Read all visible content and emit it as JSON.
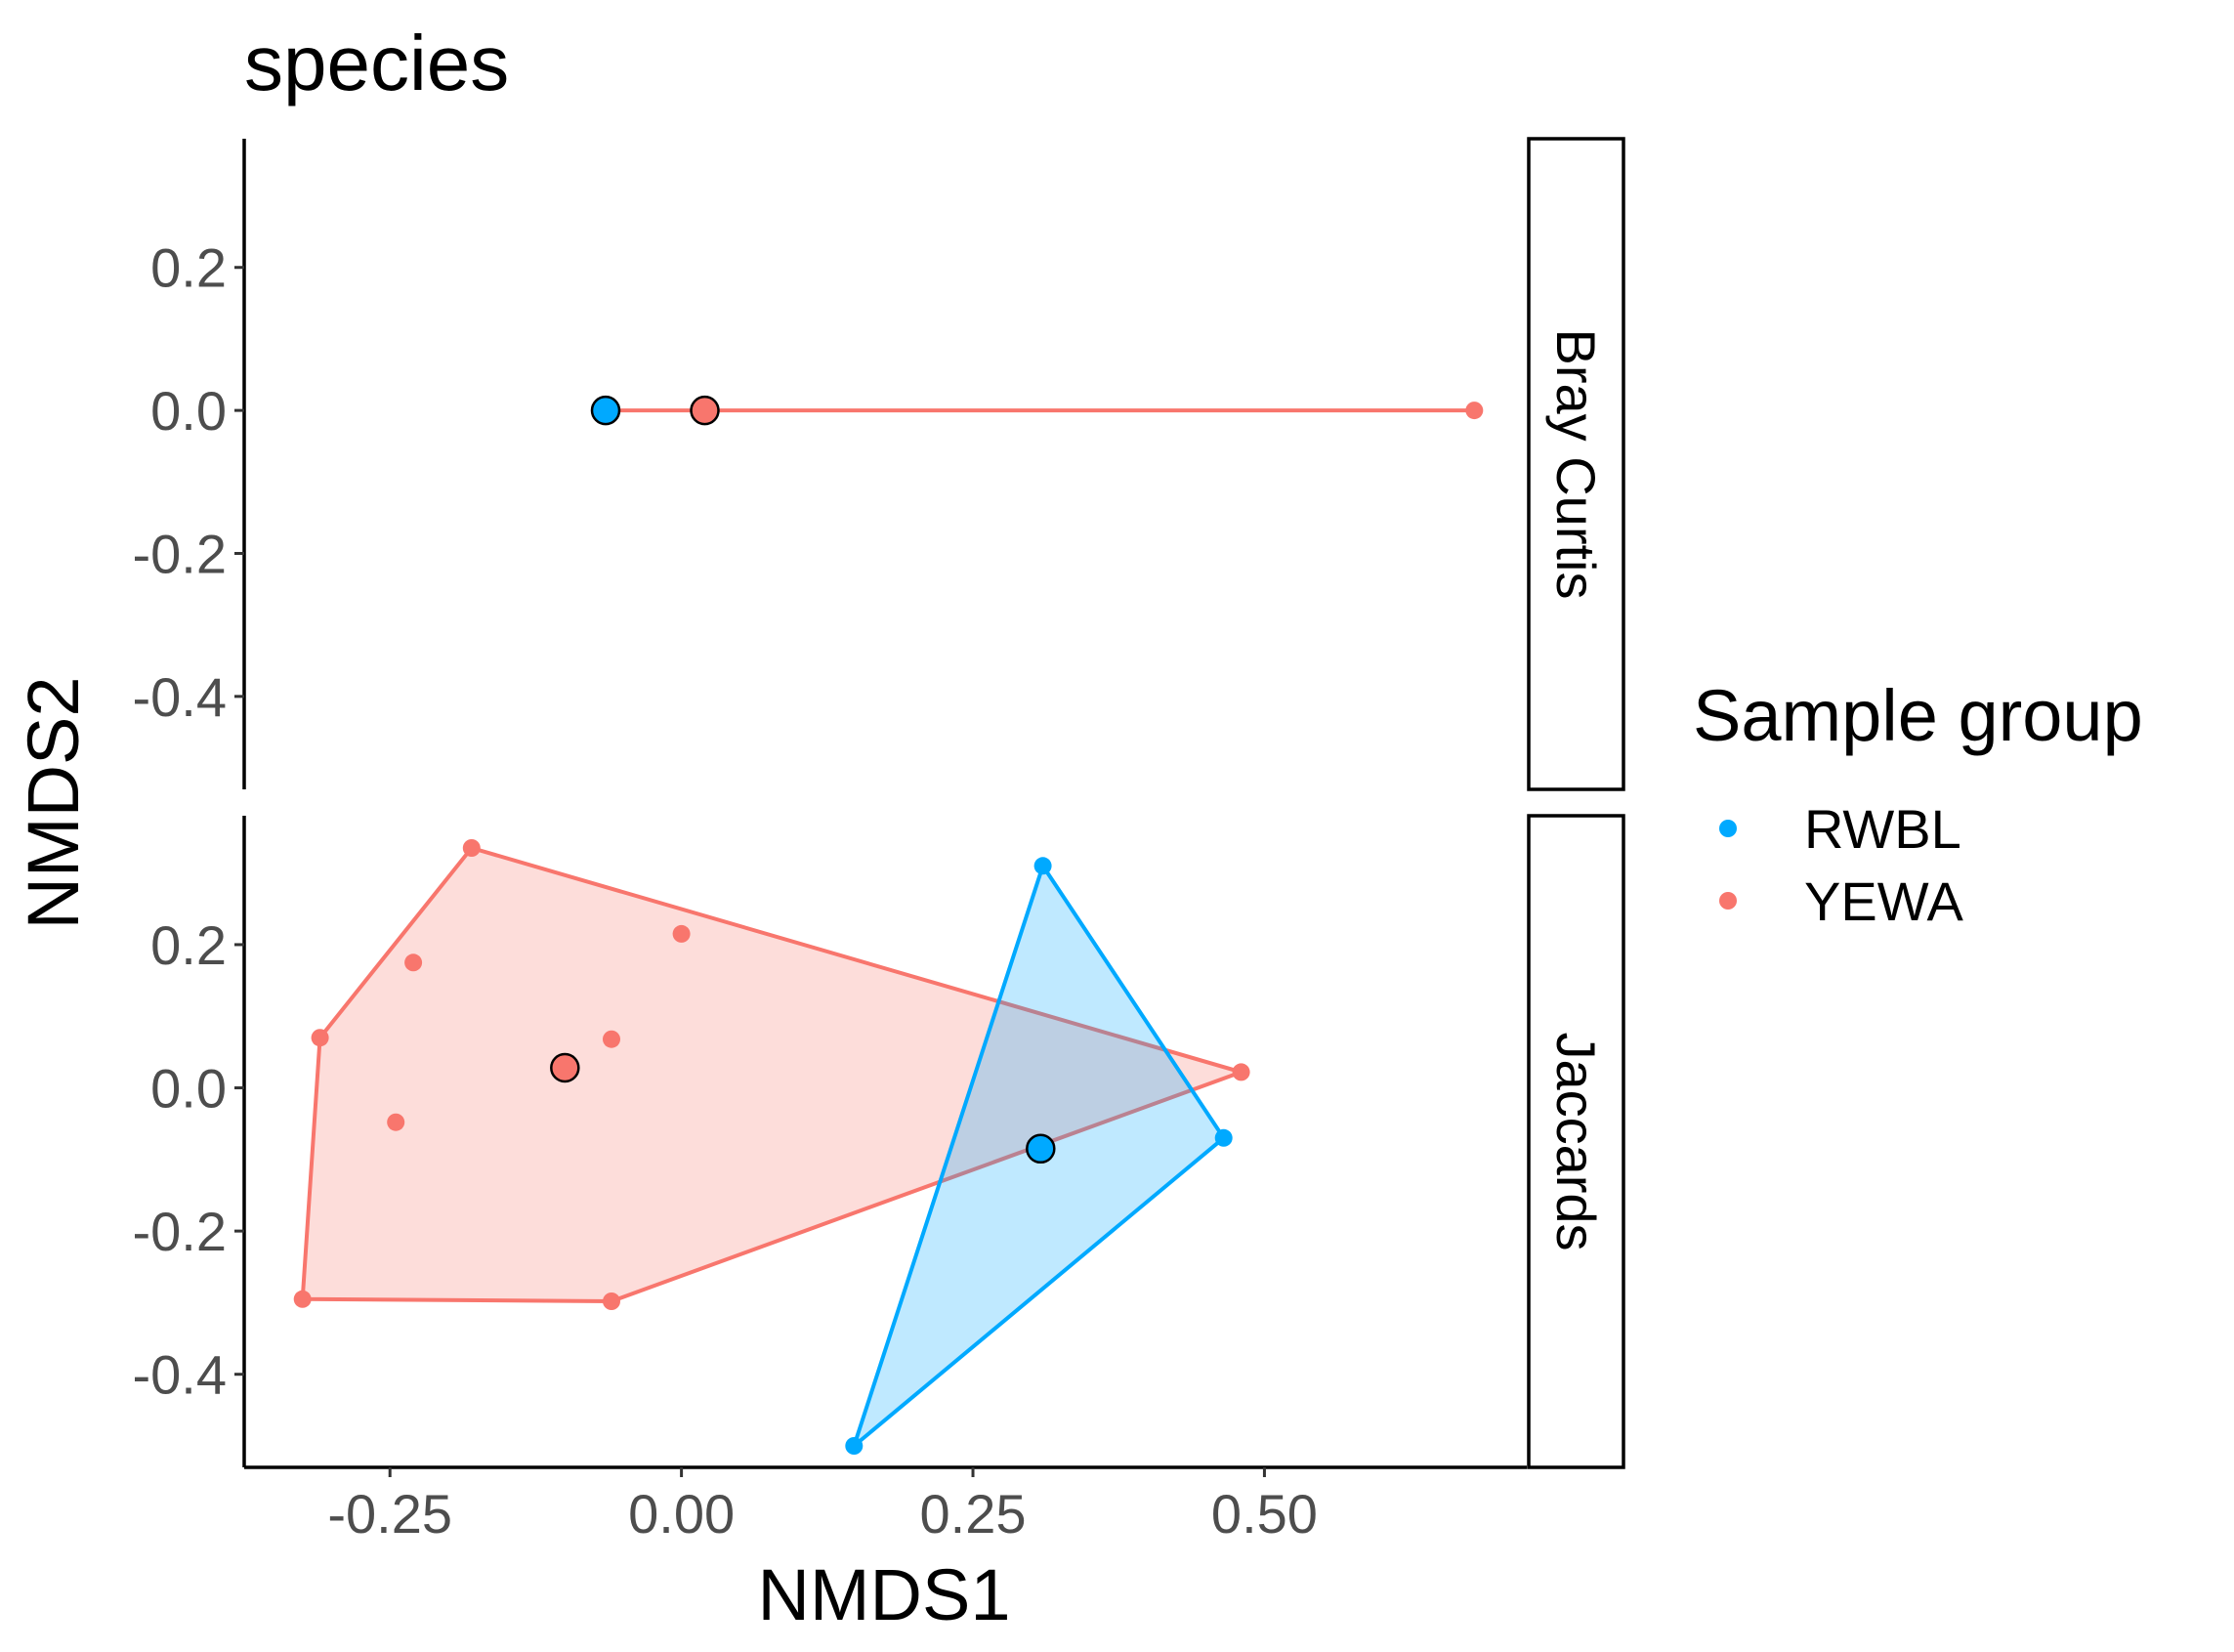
{
  "chart_data": {
    "type": "scatter",
    "title": "species",
    "xlabel": "NMDS1",
    "ylabel": "NMDS2",
    "xlim": [
      -0.375,
      0.725
    ],
    "ylim": [
      -0.53,
      0.38
    ],
    "x_ticks": [
      -0.25,
      0.0,
      0.25,
      0.5
    ],
    "x_tick_labels": [
      "-0.25",
      "0.00",
      "0.25",
      "0.50"
    ],
    "y_ticks": [
      0.2,
      0.0,
      -0.2,
      -0.4
    ],
    "y_tick_labels": [
      "0.2",
      "0.0",
      "-0.2",
      "-0.4"
    ],
    "grid": false,
    "legend": {
      "title": "Sample group",
      "placement": "right",
      "entries": [
        {
          "label": "RWBL",
          "color": "#00A9FF"
        },
        {
          "label": "YEWA",
          "color": "#F8766D"
        }
      ]
    },
    "series_colors": {
      "RWBL": "#00A9FF",
      "YEWA": "#F8766D"
    },
    "panels": [
      {
        "strip": "Bray Curtis",
        "points": {
          "RWBL": [
            [
              -0.065,
              0.0
            ]
          ],
          "YEWA": [
            [
              0.68,
              0.0
            ]
          ]
        },
        "hulls": {
          "YEWA": [
            [
              -0.065,
              0.0
            ],
            [
              0.68,
              0.0
            ]
          ]
        },
        "centroids": {
          "RWBL": [
            -0.065,
            0.0
          ],
          "YEWA": [
            0.02,
            0.0
          ]
        }
      },
      {
        "strip": "Jaccards",
        "points": {
          "RWBL": [
            [
              0.31,
              0.31
            ],
            [
              0.465,
              -0.07
            ],
            [
              0.148,
              -0.5
            ]
          ],
          "YEWA": [
            [
              -0.18,
              0.335
            ],
            [
              -0.23,
              0.175
            ],
            [
              0.0,
              0.215
            ],
            [
              -0.31,
              0.07
            ],
            [
              -0.06,
              0.068
            ],
            [
              -0.245,
              -0.048
            ],
            [
              -0.325,
              -0.295
            ],
            [
              -0.06,
              -0.298
            ],
            [
              0.48,
              0.022
            ]
          ]
        },
        "hulls": {
          "YEWA": [
            [
              -0.18,
              0.335
            ],
            [
              0.48,
              0.022
            ],
            [
              -0.06,
              -0.298
            ],
            [
              -0.325,
              -0.295
            ],
            [
              -0.31,
              0.07
            ]
          ],
          "RWBL": [
            [
              0.31,
              0.31
            ],
            [
              0.465,
              -0.07
            ],
            [
              0.148,
              -0.5
            ]
          ]
        },
        "centroids": {
          "RWBL": [
            0.308,
            -0.085
          ],
          "YEWA": [
            -0.1,
            0.028
          ]
        }
      }
    ]
  }
}
